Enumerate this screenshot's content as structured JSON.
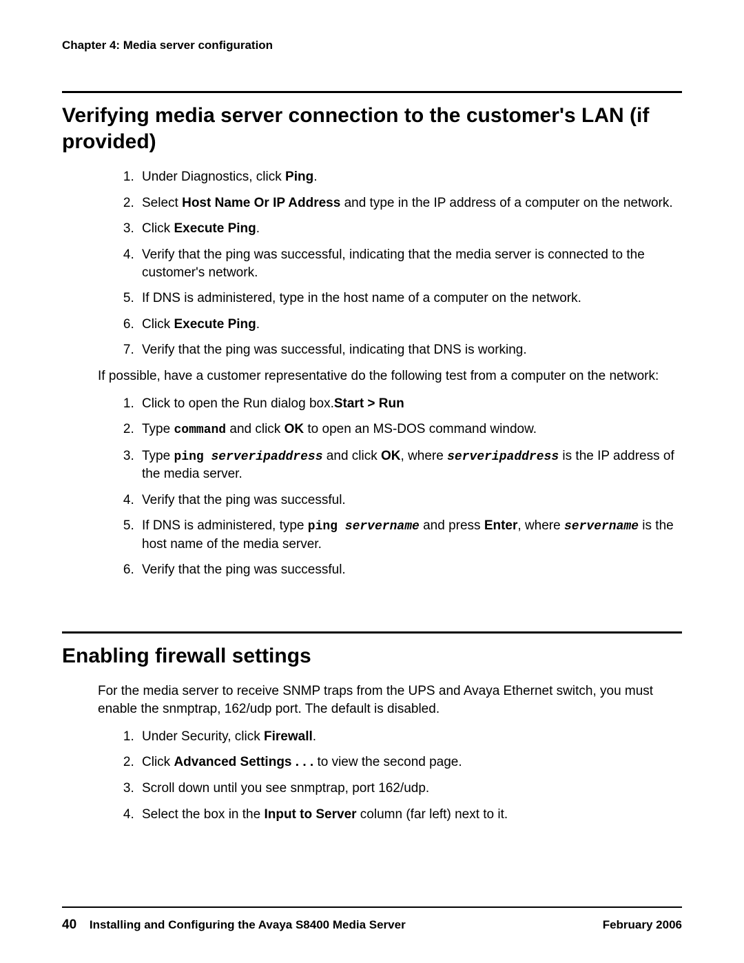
{
  "header": {
    "chapter": "Chapter 4: Media server configuration"
  },
  "section1": {
    "title": "Verifying media server connection to the customer's LAN (if provided)",
    "steps": [
      {
        "pre": "Under Diagnostics, click ",
        "bold": "Ping",
        "post": "."
      },
      {
        "pre": "Select ",
        "bold": "Host Name Or IP Address",
        "post": " and type in the IP address of a computer on the network."
      },
      {
        "pre": "Click ",
        "bold": "Execute Ping",
        "post": "."
      },
      {
        "plain": "Verify that the ping was successful, indicating that the media server is connected to the customer's network."
      },
      {
        "plain": "If DNS is administered, type in the host name of a computer on the network."
      },
      {
        "pre": "Click ",
        "bold": "Execute Ping",
        "post": "."
      },
      {
        "plain": "Verify that the ping was successful, indicating that DNS is working."
      }
    ],
    "midPara": "If possible, have a customer representative do the following test from a computer on the network:",
    "steps2": [
      {
        "t1": "Click ",
        "b1": "Start > Run",
        "t2": " to open the Run dialog box."
      },
      {
        "t1": "Type ",
        "m1": "command",
        "t2": " and click ",
        "b1": "OK",
        "t3": " to open an MS-DOS command window."
      },
      {
        "t1": "Type ",
        "m1": "ping ",
        "mi1": "serveripaddress",
        "t2": " and click ",
        "b1": "OK",
        "t3": ", where ",
        "mi2": "serveripaddress",
        "t4": " is the IP address of the media server."
      },
      {
        "plain": "Verify that the ping was successful."
      },
      {
        "t1": "If DNS is administered, type ",
        "m1": "ping ",
        "mi1": "servername",
        "t2": " and press ",
        "b1": "Enter",
        "t3": ", where ",
        "mi2": "servername",
        "t4": " is the host name of the media server."
      },
      {
        "plain": "Verify that the ping was successful."
      }
    ]
  },
  "section2": {
    "title": "Enabling firewall settings",
    "intro": "For the media server to receive SNMP traps from the UPS and Avaya Ethernet switch, you must enable the snmptrap, 162/udp port. The default is disabled.",
    "steps": [
      {
        "pre": "Under Security, click ",
        "bold": "Firewall",
        "post": "."
      },
      {
        "pre": "Click ",
        "bold": "Advanced Settings . . .",
        "post": " to view the second page."
      },
      {
        "plain": "Scroll down until you see snmptrap, port 162/udp."
      },
      {
        "pre": "Select the box in the ",
        "bold": "Input to Server",
        "post": " column (far left) next to it."
      }
    ]
  },
  "footer": {
    "pageNumber": "40",
    "docTitle": "Installing and Configuring the Avaya S8400 Media Server",
    "date": "February 2006"
  }
}
